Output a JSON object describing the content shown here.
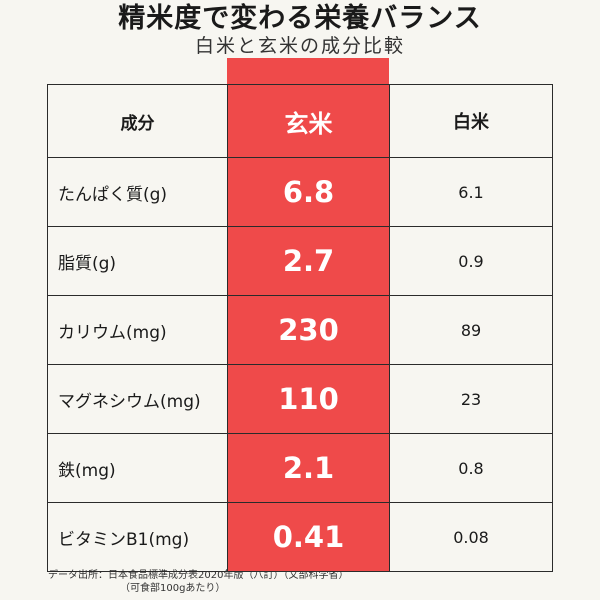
{
  "title": "精米度で変わる栄養バランス",
  "subtitle": "白米と玄米の成分比較",
  "table": {
    "headers": {
      "component": "成分",
      "brown_rice": "玄米",
      "white_rice": "白米"
    },
    "rows": [
      {
        "component": "たんぱく質(g)",
        "brown_rice": "6.8",
        "white_rice": "6.1"
      },
      {
        "component": "脂質(g)",
        "brown_rice": "2.7",
        "white_rice": "0.9"
      },
      {
        "component": "カリウム(mg)",
        "brown_rice": "230",
        "white_rice": "89"
      },
      {
        "component": "マグネシウム(mg)",
        "brown_rice": "110",
        "white_rice": "23"
      },
      {
        "component": "鉄(mg)",
        "brown_rice": "2.1",
        "white_rice": "0.8"
      },
      {
        "component": "ビタミンB1(mg)",
        "brown_rice": "0.41",
        "white_rice": "0.08"
      }
    ]
  },
  "footer": {
    "line1": "データ出所：日本食品標準成分表2020年版（八訂）（文部科学省）",
    "line2": "（可食部100gあたり）"
  },
  "colors": {
    "highlight": "#ef4a4a",
    "background": "#f7f6f1"
  }
}
